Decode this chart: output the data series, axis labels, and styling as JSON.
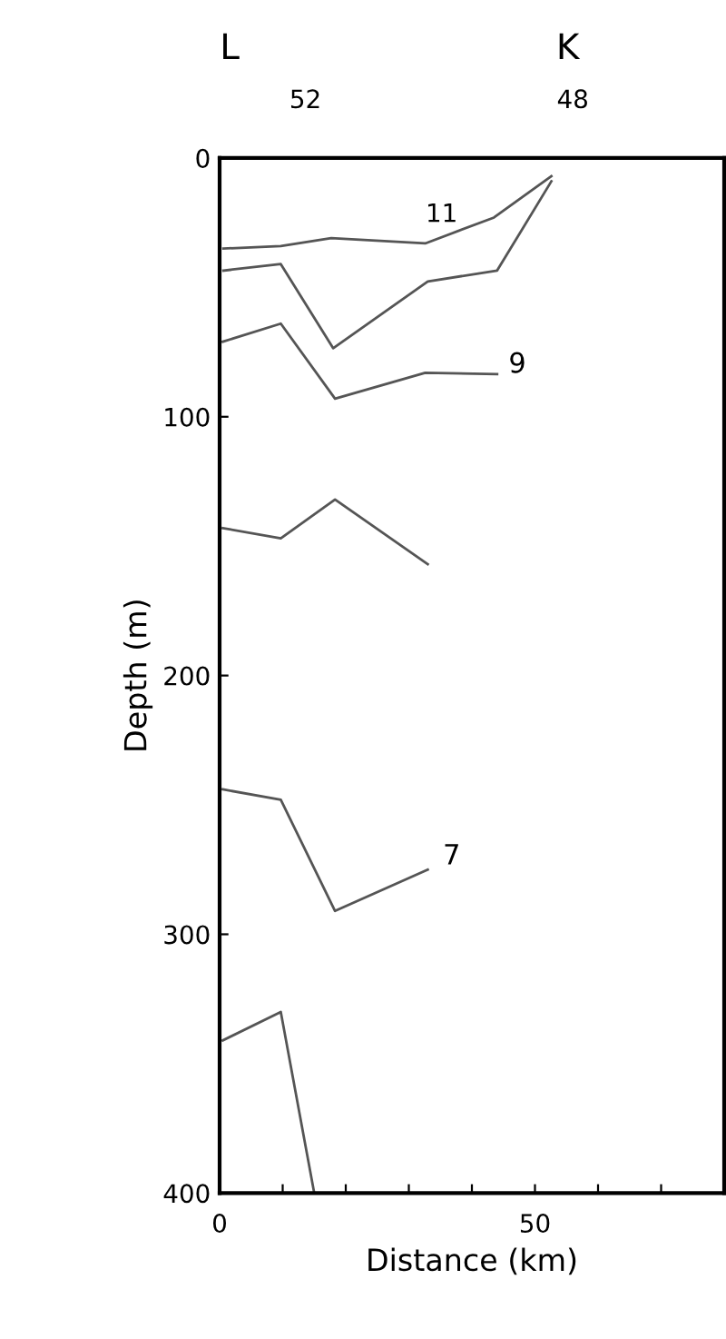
{
  "chart_data": {
    "type": "line",
    "xlabel": "Distance (km)",
    "ylabel": "Depth (m)",
    "series": [
      {
        "color": "#555555",
        "x": [
          0.6,
          9.7,
          17.7,
          32.6,
          43.5,
          52.6
        ],
        "values": [
          35,
          34,
          31,
          33,
          23,
          7
        ]
      },
      {
        "color": "#555555",
        "x": [
          0.6,
          9.7,
          18,
          33,
          44,
          52.6
        ],
        "values": [
          43.5,
          41,
          73.5,
          47.7,
          43.5,
          9
        ]
      },
      {
        "color": "#555555",
        "x": [
          0.5,
          9.7,
          18.3,
          32.6,
          44
        ],
        "values": [
          71,
          64,
          93,
          83,
          83.5
        ]
      },
      {
        "color": "#555555",
        "x": [
          0.5,
          9.7,
          18.3,
          33
        ],
        "values": [
          143,
          147,
          132,
          157
        ]
      },
      {
        "color": "#555555",
        "x": [
          0.5,
          9.7,
          18.3,
          33
        ],
        "values": [
          244,
          248,
          291,
          275
        ]
      },
      {
        "color": "#555555",
        "x": [
          0.5,
          9.7,
          15
        ],
        "values": [
          341,
          330,
          400
        ]
      }
    ],
    "xlim": [
      0,
      80
    ],
    "ylim": [
      400,
      0
    ],
    "xticks": [
      0,
      {
        "value": 10,
        "label": null
      },
      {
        "value": 20,
        "label": null
      },
      {
        "value": 30,
        "label": null
      },
      {
        "value": 40,
        "label": null
      },
      50,
      {
        "value": 60,
        "label": null
      },
      {
        "value": 70,
        "label": null
      }
    ],
    "yticks": [
      0,
      100,
      200,
      300,
      400
    ],
    "annotations": [
      "11",
      "9",
      "7",
      "L",
      "K",
      "52",
      "48"
    ],
    "grid": false,
    "legend": false,
    "marker": "none",
    "line_style": "solid"
  }
}
